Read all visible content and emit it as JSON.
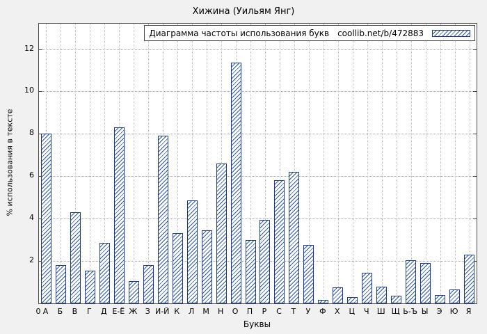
{
  "chart_data": {
    "type": "bar",
    "title": "Хижина (Уильям Янг)",
    "legend_label": "Диаграмма частоты использования букв",
    "legend_url": "coollib.net/b/472883",
    "xlabel": "Буквы",
    "ylabel": "% использования в тексте",
    "ylim": [
      0,
      13.2
    ],
    "yticks": [
      0,
      2,
      4,
      6,
      8,
      10,
      12
    ],
    "origin_label": "0",
    "grid": true,
    "legend_position": "top-right",
    "bar_border_color": "#1b3a94",
    "bar_hatch_color": "#2c55ad",
    "categories": [
      "А",
      "Б",
      "В",
      "Г",
      "Д",
      "Е-Ё",
      "Ж",
      "З",
      "И-Й",
      "К",
      "Л",
      "М",
      "Н",
      "О",
      "П",
      "Р",
      "С",
      "Т",
      "У",
      "Ф",
      "Х",
      "Ц",
      "Ч",
      "Ш",
      "Щ",
      "Ь-Ъ",
      "Ы",
      "Э",
      "Ю",
      "Я"
    ],
    "values": [
      8.0,
      1.8,
      4.3,
      1.55,
      2.85,
      8.3,
      1.05,
      1.8,
      7.9,
      3.3,
      4.85,
      3.45,
      6.6,
      11.35,
      3.0,
      3.95,
      5.8,
      6.2,
      2.75,
      0.15,
      0.75,
      0.3,
      1.45,
      0.8,
      0.35,
      2.05,
      1.9,
      0.4,
      0.65,
      2.3
    ]
  }
}
